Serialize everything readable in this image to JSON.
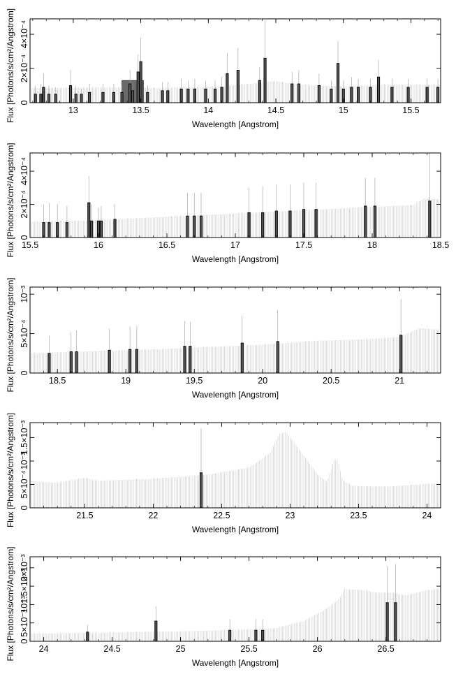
{
  "chart_data": [
    {
      "type": "bar",
      "xlabel": "Wavelength [Angstrom]",
      "ylabel": "Flux [Photons/s/cm²/Angstrom]",
      "xlim": [
        12.68,
        15.72
      ],
      "ylim": [
        0,
        0.00049
      ],
      "x_ticks": [
        {
          "value": 13,
          "label": "13"
        },
        {
          "value": 13.5,
          "label": "13.5"
        },
        {
          "value": 14,
          "label": "14"
        },
        {
          "value": 14.5,
          "label": "14.5"
        },
        {
          "value": 15,
          "label": "15"
        },
        {
          "value": 15.5,
          "label": "15.5"
        }
      ],
      "y_ticks": [
        {
          "value": 0,
          "label": "0"
        },
        {
          "value": 0.0002,
          "label": "2×10⁻⁴"
        },
        {
          "value": 0.0004,
          "label": "4×10⁻⁴"
        }
      ],
      "continuum": [
        [
          12.68,
          8.5e-05
        ],
        [
          13.5,
          9e-05
        ],
        [
          13.6,
          8.5e-05
        ],
        [
          14.1,
          9.5e-05
        ],
        [
          14.3,
          0.00011
        ],
        [
          14.5,
          0.000125
        ],
        [
          14.7,
          0.000105
        ],
        [
          15.0,
          9.5e-05
        ],
        [
          15.3,
          0.000105
        ],
        [
          15.72,
          0.000105
        ]
      ],
      "bands": [
        {
          "x0": 13.36,
          "x1": 13.52,
          "value": 0.00013
        }
      ],
      "lines": [
        {
          "x": 12.72,
          "value": 5e-05,
          "err": 5e-05
        },
        {
          "x": 12.76,
          "value": 5e-05,
          "err": 6e-05
        },
        {
          "x": 12.78,
          "value": 9e-05,
          "err": 8e-05
        },
        {
          "x": 12.82,
          "value": 5e-05,
          "err": 5e-05
        },
        {
          "x": 12.87,
          "value": 5e-05,
          "err": 4e-05
        },
        {
          "x": 12.98,
          "value": 0.0001,
          "err": 9e-05
        },
        {
          "x": 13.02,
          "value": 5e-05,
          "err": 5e-05
        },
        {
          "x": 13.06,
          "value": 5e-05,
          "err": 3e-05
        },
        {
          "x": 13.12,
          "value": 6e-05,
          "err": 5e-05
        },
        {
          "x": 13.22,
          "value": 6e-05,
          "err": 5e-05
        },
        {
          "x": 13.3,
          "value": 6e-05,
          "err": 5e-05
        },
        {
          "x": 13.36,
          "value": 6e-05,
          "err": 4e-05
        },
        {
          "x": 13.42,
          "value": 0.00011,
          "err": 8e-05
        },
        {
          "x": 13.44,
          "value": 7e-05,
          "err": 5e-05
        },
        {
          "x": 13.48,
          "value": 0.00018,
          "err": 0.0001
        },
        {
          "x": 13.5,
          "value": 0.00024,
          "err": 0.00014
        },
        {
          "x": 13.55,
          "value": 6e-05,
          "err": 4e-05
        },
        {
          "x": 13.66,
          "value": 7e-05,
          "err": 5e-05
        },
        {
          "x": 13.7,
          "value": 7e-05,
          "err": 5e-05
        },
        {
          "x": 13.8,
          "value": 8e-05,
          "err": 6e-05
        },
        {
          "x": 13.85,
          "value": 8e-05,
          "err": 5e-05
        },
        {
          "x": 13.9,
          "value": 8e-05,
          "err": 6e-05
        },
        {
          "x": 13.98,
          "value": 8e-05,
          "err": 5e-05
        },
        {
          "x": 14.05,
          "value": 8e-05,
          "err": 5e-05
        },
        {
          "x": 14.1,
          "value": 9e-05,
          "err": 6e-05
        },
        {
          "x": 14.14,
          "value": 0.00017,
          "err": 0.00012
        },
        {
          "x": 14.22,
          "value": 0.00019,
          "err": 0.00013
        },
        {
          "x": 14.38,
          "value": 0.00013,
          "err": 8e-05
        },
        {
          "x": 14.42,
          "value": 0.00026,
          "err": 0.00022
        },
        {
          "x": 14.62,
          "value": 0.00011,
          "err": 7e-05
        },
        {
          "x": 14.67,
          "value": 0.00011,
          "err": 8e-05
        },
        {
          "x": 14.82,
          "value": 0.0001,
          "err": 7e-05
        },
        {
          "x": 14.91,
          "value": 8e-05,
          "err": 5e-05
        },
        {
          "x": 14.96,
          "value": 0.00023,
          "err": 0.00013
        },
        {
          "x": 15.0,
          "value": 8e-05,
          "err": 5e-05
        },
        {
          "x": 15.06,
          "value": 9e-05,
          "err": 6e-05
        },
        {
          "x": 15.11,
          "value": 9e-05,
          "err": 5e-05
        },
        {
          "x": 15.2,
          "value": 9e-05,
          "err": 5e-05
        },
        {
          "x": 15.26,
          "value": 0.00015,
          "err": 0.0001
        },
        {
          "x": 15.36,
          "value": 9e-05,
          "err": 5e-05
        },
        {
          "x": 15.48,
          "value": 9e-05,
          "err": 5e-05
        },
        {
          "x": 15.62,
          "value": 9e-05,
          "err": 5e-05
        },
        {
          "x": 15.7,
          "value": 9e-05,
          "err": 5e-05
        }
      ]
    },
    {
      "type": "bar",
      "xlabel": "Wavelength [Angstrom]",
      "ylabel": "Flux [Photons/s/cm²/Angstrom]",
      "xlim": [
        15.5,
        18.5
      ],
      "ylim": [
        0,
        0.00051
      ],
      "x_ticks": [
        {
          "value": 15.5,
          "label": "15.5"
        },
        {
          "value": 16,
          "label": "16"
        },
        {
          "value": 16.5,
          "label": "16.5"
        },
        {
          "value": 17,
          "label": "17"
        },
        {
          "value": 17.5,
          "label": "17.5"
        },
        {
          "value": 18,
          "label": "18"
        },
        {
          "value": 18.5,
          "label": "18.5"
        }
      ],
      "y_ticks": [
        {
          "value": 0,
          "label": "0"
        },
        {
          "value": 0.0002,
          "label": "2×10⁻⁴"
        },
        {
          "value": 0.0004,
          "label": "4×10⁻⁴"
        }
      ],
      "continuum": [
        [
          15.5,
          9.5e-05
        ],
        [
          16.0,
          0.000105
        ],
        [
          16.5,
          0.000125
        ],
        [
          17.0,
          0.000145
        ],
        [
          17.5,
          0.000165
        ],
        [
          18.0,
          0.000185
        ],
        [
          18.3,
          0.000195
        ],
        [
          18.38,
          0.000235
        ],
        [
          18.5,
          0.00023
        ]
      ],
      "bands": [],
      "lines": [
        {
          "x": 15.6,
          "value": 9e-05,
          "err": 0.00011
        },
        {
          "x": 15.64,
          "value": 9e-05,
          "err": 0.00012
        },
        {
          "x": 15.7,
          "value": 9e-05,
          "err": 0.00011
        },
        {
          "x": 15.77,
          "value": 9e-05,
          "err": 0.0001
        },
        {
          "x": 15.93,
          "value": 0.00021,
          "err": 0.00016
        },
        {
          "x": 15.95,
          "value": 0.0001,
          "err": 0.0001
        },
        {
          "x": 16.0,
          "value": 0.0001,
          "err": 8e-05
        },
        {
          "x": 16.02,
          "value": 0.0001,
          "err": 9e-05
        },
        {
          "x": 16.12,
          "value": 0.00011,
          "err": 9e-05
        },
        {
          "x": 16.65,
          "value": 0.00013,
          "err": 0.00014
        },
        {
          "x": 16.7,
          "value": 0.00013,
          "err": 0.00014
        },
        {
          "x": 16.75,
          "value": 0.00013,
          "err": 0.00014
        },
        {
          "x": 17.1,
          "value": 0.00015,
          "err": 0.00015
        },
        {
          "x": 17.2,
          "value": 0.00015,
          "err": 0.00016
        },
        {
          "x": 17.3,
          "value": 0.00016,
          "err": 0.00016
        },
        {
          "x": 17.4,
          "value": 0.00016,
          "err": 0.00016
        },
        {
          "x": 17.5,
          "value": 0.00017,
          "err": 0.00016
        },
        {
          "x": 17.59,
          "value": 0.00017,
          "err": 0.00016
        },
        {
          "x": 17.95,
          "value": 0.00019,
          "err": 0.00017
        },
        {
          "x": 18.02,
          "value": 0.00019,
          "err": 0.00017
        },
        {
          "x": 18.42,
          "value": 0.00022,
          "err": 0.00029
        }
      ]
    },
    {
      "type": "bar",
      "xlabel": "Wavelength [Angstrom]",
      "ylabel": "Flux [Photons/s/cm²/Angstrom]",
      "xlim": [
        18.3,
        21.3
      ],
      "ylim": [
        0,
        0.00109
      ],
      "x_ticks": [
        {
          "value": 18.5,
          "label": "18.5"
        },
        {
          "value": 19,
          "label": "19"
        },
        {
          "value": 19.5,
          "label": "19.5"
        },
        {
          "value": 20,
          "label": "20"
        },
        {
          "value": 20.5,
          "label": "20.5"
        },
        {
          "value": 21,
          "label": "21"
        }
      ],
      "y_ticks": [
        {
          "value": 0,
          "label": "0"
        },
        {
          "value": 0.0005,
          "label": "5×10⁻⁴"
        },
        {
          "value": 0.001,
          "label": "10⁻³"
        }
      ],
      "continuum": [
        [
          18.3,
          0.00025
        ],
        [
          18.8,
          0.00028
        ],
        [
          19.2,
          0.0003
        ],
        [
          19.6,
          0.00033
        ],
        [
          20.0,
          0.00036
        ],
        [
          20.4,
          0.00041
        ],
        [
          20.8,
          0.00043
        ],
        [
          21.0,
          0.00046
        ],
        [
          21.15,
          0.00057
        ],
        [
          21.3,
          0.00055
        ]
      ],
      "bands": [],
      "lines": [
        {
          "x": 18.44,
          "value": 0.00025,
          "err": 0.00022
        },
        {
          "x": 18.6,
          "value": 0.00027,
          "err": 0.00025
        },
        {
          "x": 18.64,
          "value": 0.00027,
          "err": 0.00027
        },
        {
          "x": 18.88,
          "value": 0.00029,
          "err": 0.00027
        },
        {
          "x": 19.03,
          "value": 0.0003,
          "err": 0.00029
        },
        {
          "x": 19.08,
          "value": 0.0003,
          "err": 0.0003
        },
        {
          "x": 19.43,
          "value": 0.00034,
          "err": 0.00032
        },
        {
          "x": 19.47,
          "value": 0.00034,
          "err": 0.00031
        },
        {
          "x": 19.85,
          "value": 0.00038,
          "err": 0.00035
        },
        {
          "x": 20.11,
          "value": 0.0004,
          "err": 0.0004
        },
        {
          "x": 21.01,
          "value": 0.00048,
          "err": 0.00046
        }
      ]
    },
    {
      "type": "bar",
      "xlabel": "Wavelength [Angstrom]",
      "ylabel": "Flux [Photons/s/cm²/Angstrom]",
      "xlim": [
        21.1,
        24.1
      ],
      "ylim": [
        0,
        0.00182
      ],
      "x_ticks": [
        {
          "value": 21.5,
          "label": "21.5"
        },
        {
          "value": 22,
          "label": "22"
        },
        {
          "value": 22.5,
          "label": "22.5"
        },
        {
          "value": 23,
          "label": "23"
        },
        {
          "value": 23.5,
          "label": "23.5"
        },
        {
          "value": 24,
          "label": "24"
        }
      ],
      "y_ticks": [
        {
          "value": 0,
          "label": "0"
        },
        {
          "value": 0.0005,
          "label": "5×10⁻⁴"
        },
        {
          "value": 0.001,
          "label": "10⁻³"
        },
        {
          "value": 0.0015,
          "label": "1.5×10⁻³"
        }
      ],
      "continuum": [
        [
          21.1,
          0.00057
        ],
        [
          21.3,
          0.00054
        ],
        [
          21.5,
          0.00064
        ],
        [
          21.6,
          0.00058
        ],
        [
          22.0,
          0.00062
        ],
        [
          22.4,
          0.00071
        ],
        [
          22.7,
          0.00086
        ],
        [
          22.85,
          0.00115
        ],
        [
          22.92,
          0.00158
        ],
        [
          22.97,
          0.00162
        ],
        [
          23.05,
          0.00132
        ],
        [
          23.2,
          0.00072
        ],
        [
          23.27,
          0.00055
        ],
        [
          23.32,
          0.00102
        ],
        [
          23.35,
          0.00102
        ],
        [
          23.38,
          0.0006
        ],
        [
          23.45,
          0.00047
        ],
        [
          23.7,
          0.00045
        ],
        [
          24.1,
          0.00053
        ]
      ],
      "bands": [],
      "lines": [
        {
          "x": 22.35,
          "value": 0.00075,
          "err": 0.00095
        }
      ]
    },
    {
      "type": "bar",
      "xlabel": "Wavelength [Angstrom]",
      "ylabel": "Flux [Photons/s/cm²/Angstrom]",
      "xlim": [
        23.9,
        26.9
      ],
      "ylim": [
        0,
        0.0023
      ],
      "x_ticks": [
        {
          "value": 24,
          "label": "24"
        },
        {
          "value": 24.5,
          "label": "24.5"
        },
        {
          "value": 25,
          "label": "25"
        },
        {
          "value": 25.5,
          "label": "25.5"
        },
        {
          "value": 26,
          "label": "26"
        },
        {
          "value": 26.5,
          "label": "26.5"
        }
      ],
      "y_ticks": [
        {
          "value": 0,
          "label": "0"
        },
        {
          "value": 0.0005,
          "label": "5×10⁻⁴"
        },
        {
          "value": 0.001,
          "label": "10⁻³"
        },
        {
          "value": 0.0015,
          "label": "1.5×10⁻³"
        },
        {
          "value": 0.002,
          "label": "2×10⁻³"
        }
      ],
      "continuum": [
        [
          23.9,
          0.00021
        ],
        [
          24.5,
          0.00024
        ],
        [
          25.0,
          0.00027
        ],
        [
          25.5,
          0.00032
        ],
        [
          25.7,
          0.00036
        ],
        [
          25.9,
          0.00055
        ],
        [
          26.05,
          0.00085
        ],
        [
          26.15,
          0.00112
        ],
        [
          26.2,
          0.00142
        ],
        [
          26.3,
          0.0014
        ],
        [
          26.45,
          0.00132
        ],
        [
          26.55,
          0.00132
        ],
        [
          26.65,
          0.00125
        ],
        [
          26.75,
          0.00135
        ],
        [
          26.9,
          0.00145
        ]
      ],
      "bands": [],
      "lines": [
        {
          "x": 24.32,
          "value": 0.00025,
          "err": 0.0002
        },
        {
          "x": 24.82,
          "value": 0.00055,
          "err": 0.0004
        },
        {
          "x": 25.36,
          "value": 0.0003,
          "err": 0.0003
        },
        {
          "x": 25.55,
          "value": 0.0003,
          "err": 0.0003
        },
        {
          "x": 25.6,
          "value": 0.0003,
          "err": 0.0003
        },
        {
          "x": 26.51,
          "value": 0.00105,
          "err": 0.001
        },
        {
          "x": 26.57,
          "value": 0.00105,
          "err": 0.00105
        }
      ]
    }
  ]
}
